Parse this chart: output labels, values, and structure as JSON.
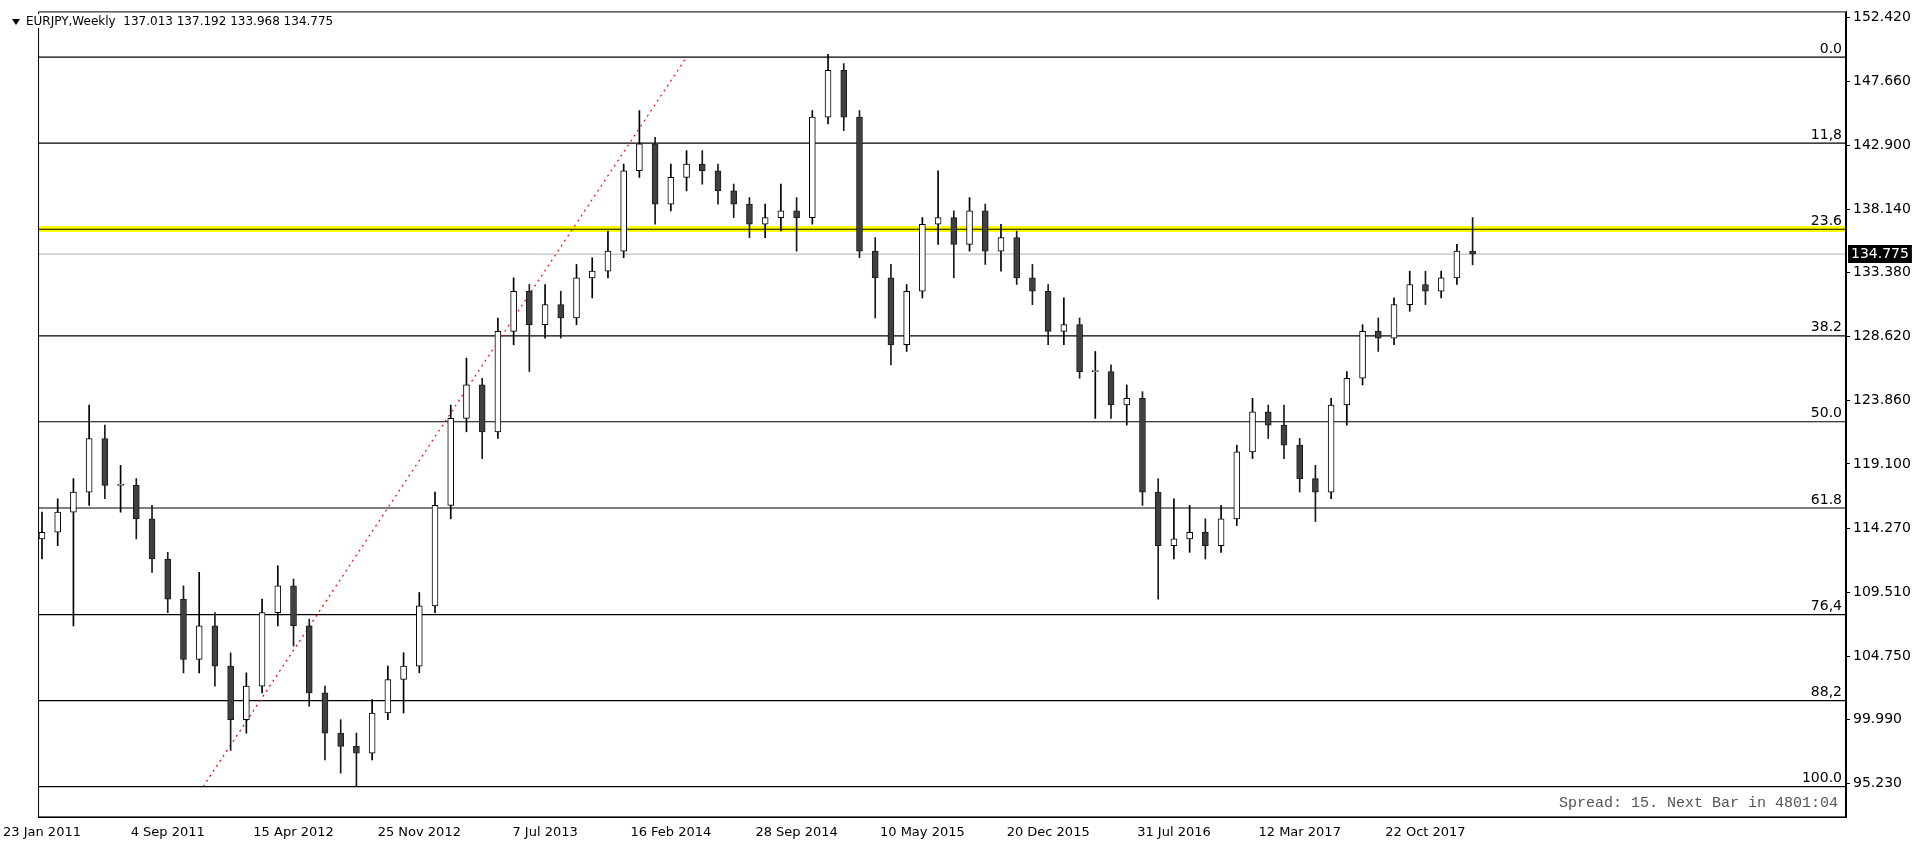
{
  "chart_data": {
    "type": "candlestick",
    "title": "EURJPY,Weekly  137.013 137.192 133.968 134.775",
    "x": [
      "2011-01-23",
      "2011-02-20",
      "2011-03-20",
      "2011-04-17",
      "2011-05-15",
      "2011-06-12",
      "2011-07-10",
      "2011-08-07",
      "2011-09-04",
      "2011-10-02",
      "2011-10-30",
      "2011-11-27",
      "2011-12-25",
      "2012-01-22",
      "2012-02-19",
      "2012-03-18",
      "2012-04-15",
      "2012-05-13",
      "2012-06-10",
      "2012-07-08",
      "2012-08-05",
      "2012-09-02",
      "2012-09-30",
      "2012-10-28",
      "2012-11-25",
      "2012-12-23",
      "2013-01-20",
      "2013-02-17",
      "2013-03-17",
      "2013-04-14",
      "2013-05-12",
      "2013-06-09",
      "2013-07-07",
      "2013-08-04",
      "2013-09-01",
      "2013-09-29",
      "2013-10-27",
      "2013-11-24",
      "2013-12-22",
      "2014-01-19",
      "2014-02-16",
      "2014-03-16",
      "2014-04-13",
      "2014-05-11",
      "2014-06-08",
      "2014-07-06",
      "2014-08-03",
      "2014-08-31",
      "2014-09-28",
      "2014-10-26",
      "2014-11-23",
      "2014-12-21",
      "2015-01-18",
      "2015-02-15",
      "2015-03-15",
      "2015-04-12",
      "2015-05-10",
      "2015-06-07",
      "2015-07-05",
      "2015-08-02",
      "2015-08-30",
      "2015-09-27",
      "2015-10-25",
      "2015-11-22",
      "2015-12-20",
      "2016-01-17",
      "2016-02-14",
      "2016-03-13",
      "2016-04-10",
      "2016-05-08",
      "2016-06-05",
      "2016-07-03",
      "2016-07-31",
      "2016-08-28",
      "2016-09-25",
      "2016-10-23",
      "2016-11-20",
      "2016-12-18",
      "2017-01-15",
      "2017-02-12",
      "2017-03-12",
      "2017-04-09",
      "2017-05-07",
      "2017-06-04",
      "2017-07-02",
      "2017-07-30",
      "2017-08-27",
      "2017-09-24",
      "2017-10-22",
      "2017-11-19",
      "2017-12-17",
      "2018-01-14"
    ],
    "ohlc": [
      [
        113.5,
        115.5,
        112.0,
        114.0
      ],
      [
        114.0,
        116.5,
        113.0,
        115.5
      ],
      [
        115.5,
        118.0,
        107.0,
        117.0
      ],
      [
        117.0,
        123.5,
        116.0,
        121.0
      ],
      [
        121.0,
        122.0,
        116.5,
        117.5
      ],
      [
        117.5,
        119.0,
        115.5,
        117.5
      ],
      [
        117.5,
        118.0,
        113.5,
        115.0
      ],
      [
        115.0,
        116.0,
        111.0,
        112.0
      ],
      [
        112.0,
        112.5,
        108.0,
        109.0
      ],
      [
        109.0,
        110.0,
        103.5,
        104.5
      ],
      [
        104.5,
        111.0,
        103.5,
        107.0
      ],
      [
        107.0,
        108.0,
        102.5,
        104.0
      ],
      [
        104.0,
        105.0,
        97.7,
        100.0
      ],
      [
        100.0,
        103.5,
        99.0,
        102.5
      ],
      [
        102.5,
        109.0,
        102.0,
        108.0
      ],
      [
        108.0,
        111.5,
        107.0,
        110.0
      ],
      [
        110.0,
        110.5,
        105.5,
        107.0
      ],
      [
        107.0,
        107.5,
        101.0,
        102.0
      ],
      [
        102.0,
        102.5,
        97.0,
        99.0
      ],
      [
        99.0,
        100.0,
        96.0,
        98.0
      ],
      [
        98.0,
        99.0,
        95.0,
        97.5
      ],
      [
        97.5,
        101.5,
        97.0,
        100.5
      ],
      [
        100.5,
        104.0,
        100.0,
        103.0
      ],
      [
        103.0,
        105.0,
        100.5,
        104.0
      ],
      [
        104.0,
        109.5,
        103.5,
        108.5
      ],
      [
        108.5,
        117.0,
        108.0,
        116.0
      ],
      [
        116.0,
        123.5,
        115.0,
        122.5
      ],
      [
        122.5,
        127.0,
        121.5,
        125.0
      ],
      [
        125.0,
        125.5,
        119.5,
        121.5
      ],
      [
        121.5,
        130.0,
        121.0,
        129.0
      ],
      [
        129.0,
        133.0,
        128.0,
        132.0
      ],
      [
        132.0,
        132.5,
        126.0,
        129.5
      ],
      [
        129.5,
        132.5,
        128.5,
        131.0
      ],
      [
        131.0,
        132.0,
        128.5,
        130.0
      ],
      [
        130.0,
        134.0,
        129.5,
        133.0
      ],
      [
        133.0,
        134.5,
        131.5,
        133.5
      ],
      [
        133.5,
        136.5,
        133.0,
        135.0
      ],
      [
        135.0,
        141.5,
        134.5,
        141.0
      ],
      [
        141.0,
        145.5,
        140.5,
        143.0
      ],
      [
        143.0,
        143.5,
        137.0,
        138.5
      ],
      [
        138.5,
        141.5,
        138.0,
        140.5
      ],
      [
        140.5,
        142.5,
        139.5,
        141.5
      ],
      [
        141.5,
        142.5,
        140.0,
        141.0
      ],
      [
        141.0,
        141.5,
        138.5,
        139.5
      ],
      [
        139.5,
        140.0,
        137.5,
        138.5
      ],
      [
        138.5,
        139.0,
        136.0,
        137.0
      ],
      [
        137.0,
        138.5,
        136.0,
        137.5
      ],
      [
        137.5,
        140.0,
        136.5,
        138.0
      ],
      [
        138.0,
        139.0,
        135.0,
        137.5
      ],
      [
        137.5,
        145.5,
        137.0,
        145.0
      ],
      [
        145.0,
        149.7,
        144.5,
        148.5
      ],
      [
        148.5,
        149.0,
        144.0,
        145.0
      ],
      [
        145.0,
        145.5,
        134.5,
        135.0
      ],
      [
        135.0,
        136.0,
        130.0,
        133.0
      ],
      [
        133.0,
        134.0,
        126.5,
        128.0
      ],
      [
        128.0,
        132.5,
        127.5,
        132.0
      ],
      [
        132.0,
        137.5,
        131.5,
        137.0
      ],
      [
        137.0,
        141.0,
        135.5,
        137.5
      ],
      [
        137.5,
        138.0,
        133.0,
        135.5
      ],
      [
        135.5,
        139.0,
        135.0,
        138.0
      ],
      [
        138.0,
        138.5,
        134.0,
        135.0
      ],
      [
        135.0,
        137.0,
        133.5,
        136.0
      ],
      [
        136.0,
        136.5,
        132.5,
        133.0
      ],
      [
        133.0,
        134.0,
        131.0,
        132.0
      ],
      [
        132.0,
        132.5,
        128.0,
        129.0
      ],
      [
        129.0,
        131.5,
        128.0,
        129.5
      ],
      [
        129.5,
        130.0,
        125.5,
        126.0
      ],
      [
        126.0,
        127.5,
        122.5,
        126.0
      ],
      [
        126.0,
        126.5,
        122.5,
        123.5
      ],
      [
        123.5,
        125.0,
        122.0,
        124.0
      ],
      [
        124.0,
        124.5,
        116.0,
        117.0
      ],
      [
        117.0,
        118.0,
        109.0,
        113.0
      ],
      [
        113.0,
        116.5,
        112.0,
        113.5
      ],
      [
        113.5,
        116.0,
        112.5,
        114.0
      ],
      [
        114.0,
        115.0,
        112.0,
        113.0
      ],
      [
        113.0,
        116.0,
        112.5,
        115.0
      ],
      [
        115.0,
        120.5,
        114.5,
        120.0
      ],
      [
        120.0,
        124.0,
        119.5,
        123.0
      ],
      [
        123.0,
        123.5,
        121.0,
        122.0
      ],
      [
        122.0,
        123.5,
        119.5,
        120.5
      ],
      [
        120.5,
        121.0,
        117.0,
        118.0
      ],
      [
        118.0,
        119.0,
        114.8,
        117.0
      ],
      [
        117.0,
        124.0,
        116.5,
        123.5
      ],
      [
        123.5,
        126.0,
        122.0,
        125.5
      ],
      [
        125.5,
        129.5,
        125.0,
        129.0
      ],
      [
        129.0,
        130.0,
        127.5,
        128.5
      ],
      [
        128.5,
        131.5,
        128.0,
        131.0
      ],
      [
        131.0,
        133.5,
        130.5,
        132.5
      ],
      [
        132.5,
        133.5,
        131.0,
        132.0
      ],
      [
        132.0,
        133.5,
        131.5,
        133.0
      ],
      [
        133.0,
        135.5,
        132.5,
        135.0
      ],
      [
        135.0,
        137.5,
        133.968,
        134.775
      ]
    ],
    "series": [
      {
        "type": "line",
        "x": [
          "2011-11-06",
          "2014-03-16"
        ],
        "values": [
          95.0,
          149.49
        ],
        "color": "#ff0000",
        "line_style": "dotted"
      }
    ],
    "xlim": [
      "2011-01-16",
      "2019-11-10"
    ],
    "xticks": [
      {
        "value": "2011-01-23",
        "label": "23 Jan 2011"
      },
      {
        "value": "2011-09-04",
        "label": "4 Sep 2011"
      },
      {
        "value": "2012-04-15",
        "label": "15 Apr 2012"
      },
      {
        "value": "2012-11-25",
        "label": "25 Nov 2012"
      },
      {
        "value": "2013-07-07",
        "label": "7 Jul 2013"
      },
      {
        "value": "2014-02-16",
        "label": "16 Feb 2014"
      },
      {
        "value": "2014-09-28",
        "label": "28 Sep 2014"
      },
      {
        "value": "2015-05-10",
        "label": "10 May 2015"
      },
      {
        "value": "2015-12-20",
        "label": "20 Dec 2015"
      },
      {
        "value": "2016-07-31",
        "label": "31 Jul 2016"
      },
      {
        "value": "2017-03-12",
        "label": "12 Mar 2017"
      },
      {
        "value": "2017-10-22",
        "label": "22 Oct 2017"
      }
    ],
    "ylim": [
      92.7,
      152.9
    ],
    "yticks": [
      {
        "value": 95.23,
        "label": "95.230"
      },
      {
        "value": 99.99,
        "label": "99.990"
      },
      {
        "value": 104.75,
        "label": "104.750"
      },
      {
        "value": 109.51,
        "label": "109.510"
      },
      {
        "value": 114.27,
        "label": "114.270"
      },
      {
        "value": 119.1,
        "label": "119.100"
      },
      {
        "value": 123.86,
        "label": "123.860"
      },
      {
        "value": 128.62,
        "label": "128.620"
      },
      {
        "value": 133.38,
        "label": "133.380"
      },
      {
        "value": 138.14,
        "label": "138.140"
      },
      {
        "value": 142.9,
        "label": "142.900"
      },
      {
        "value": 147.66,
        "label": "147.660"
      },
      {
        "value": 152.42,
        "label": "152.420"
      }
    ],
    "ref_lines": [
      {
        "axis": "y",
        "value": 136.65,
        "label": null,
        "color": "#ffff00"
      },
      {
        "axis": "y",
        "value": 134.775,
        "label": "134.775",
        "color": "#c0c0c0"
      },
      {
        "axis": "y",
        "value": 149.49,
        "color": "#000000"
      },
      {
        "axis": "y",
        "value": 143.06,
        "color": "#000000"
      },
      {
        "axis": "y",
        "value": 136.63,
        "color": "#000000"
      },
      {
        "axis": "y",
        "value": 128.67,
        "color": "#000000"
      },
      {
        "axis": "y",
        "value": 122.25,
        "color": "#000000"
      },
      {
        "axis": "y",
        "value": 115.81,
        "color": "#000000"
      },
      {
        "axis": "y",
        "value": 107.85,
        "color": "#000000"
      },
      {
        "axis": "y",
        "value": 101.42,
        "color": "#000000"
      },
      {
        "axis": "y",
        "value": 95.0,
        "color": "#000000"
      }
    ],
    "annotations": [
      "Spread: 15. Next Bar in 4801:04",
      {
        "text": "0.0",
        "y": 149.49
      },
      {
        "text": "11,8",
        "y": 143.06
      },
      {
        "text": "23.6",
        "y": 136.63
      },
      {
        "text": "38.2",
        "y": 128.67
      },
      {
        "text": "50.0",
        "y": 122.25
      },
      {
        "text": "61.8",
        "y": 115.81
      },
      {
        "text": "76,4",
        "y": 107.85
      },
      {
        "text": "88,2",
        "y": 101.42
      },
      {
        "text": "100.0",
        "y": 95.0
      }
    ]
  }
}
